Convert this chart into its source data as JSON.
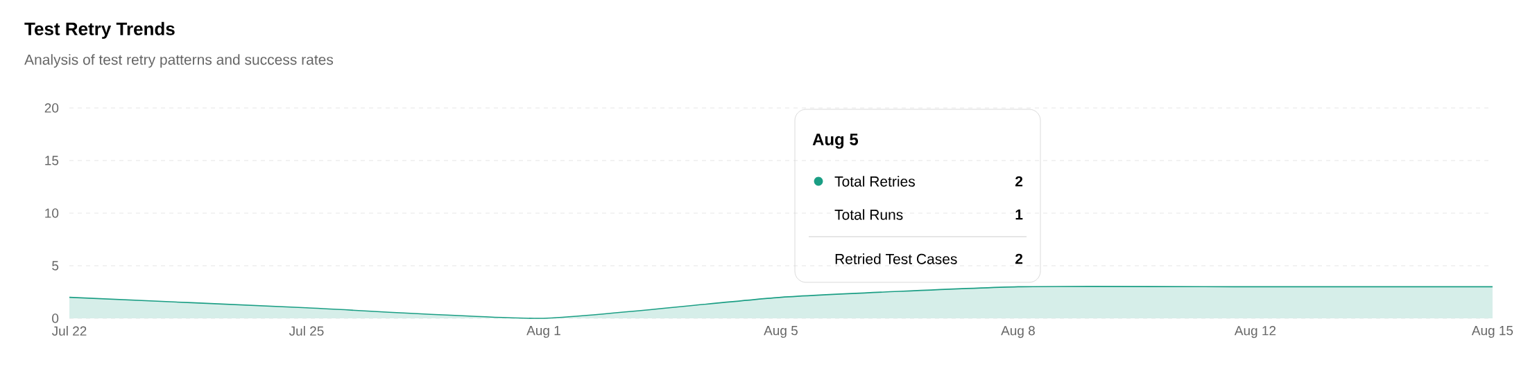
{
  "chart_data": {
    "type": "area",
    "title": "Test Retry Trends",
    "subtitle": "Analysis of test retry patterns and success rates",
    "categories": [
      "Jul 22",
      "Jul 25",
      "Aug 1",
      "Aug 5",
      "Aug 8",
      "Aug 12",
      "Aug 15"
    ],
    "series": [
      {
        "name": "Total Retries",
        "color": "#1a9e84",
        "values": [
          2,
          1,
          0,
          2,
          3,
          3,
          3
        ]
      }
    ],
    "ylim": [
      0,
      20
    ],
    "yticks": [
      0,
      5,
      10,
      15,
      20
    ],
    "grid": "y",
    "legend": "top",
    "annotations": [
      "Aug 5",
      "Total Runs",
      "1",
      "Retried Test Cases",
      "2",
      "2"
    ]
  }
}
